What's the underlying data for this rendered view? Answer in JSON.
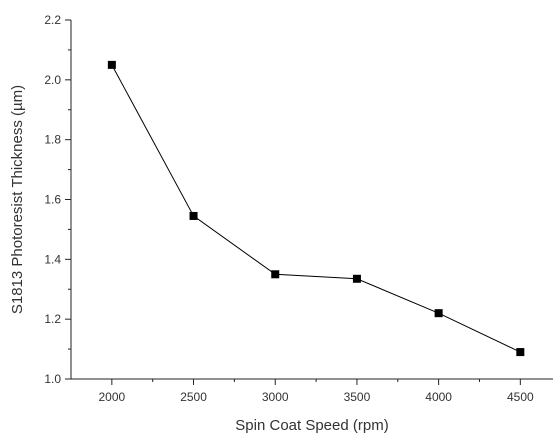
{
  "chart_data": {
    "type": "line",
    "title": "",
    "xlabel": "Spin Coat Speed (rpm)",
    "ylabel": "S1813 Photoresist Thickness (µm)",
    "x": [
      2000,
      2500,
      3000,
      3500,
      4000,
      4500
    ],
    "series": [
      {
        "values": [
          2.05,
          1.545,
          1.35,
          1.335,
          1.22,
          1.09
        ]
      }
    ],
    "xlim": [
      1750,
      4700
    ],
    "ylim": [
      1.0,
      2.2
    ],
    "xticks": [
      "2000",
      "2500",
      "3000",
      "3500",
      "4000",
      "4500"
    ],
    "yticks": [
      "1.0",
      "1.2",
      "1.4",
      "1.6",
      "1.8",
      "2.0",
      "2.2"
    ],
    "grid": false,
    "legend": "none",
    "colors": {
      "line": "#000000",
      "marker": "#000000",
      "axis": "#222222",
      "text": "#333333"
    }
  }
}
